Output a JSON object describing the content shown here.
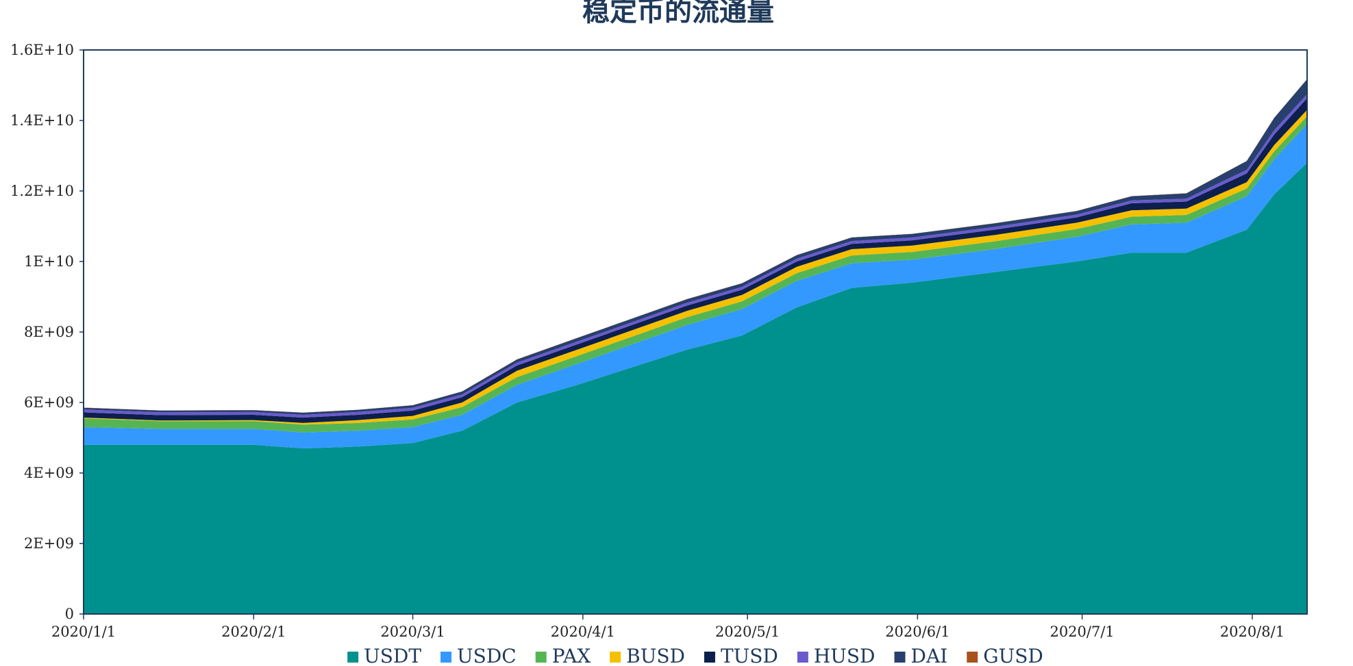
{
  "chart_data": {
    "type": "area",
    "stacked": true,
    "title": "稳定币的流通量",
    "xlabel": "",
    "ylabel": "",
    "x_start": "2020/1/1",
    "x_end": "2020/8/11",
    "xticks": [
      {
        "label": "2020/1/1",
        "date": "2020-01-01"
      },
      {
        "label": "2020/2/1",
        "date": "2020-02-01"
      },
      {
        "label": "2020/3/1",
        "date": "2020-03-01"
      },
      {
        "label": "2020/4/1",
        "date": "2020-04-01"
      },
      {
        "label": "2020/5/1",
        "date": "2020-05-01"
      },
      {
        "label": "2020/6/1",
        "date": "2020-06-01"
      },
      {
        "label": "2020/7/1",
        "date": "2020-07-01"
      },
      {
        "label": "2020/8/1",
        "date": "2020-08-01"
      }
    ],
    "ylim": [
      0,
      16000000000
    ],
    "yticks": [
      {
        "label": "0",
        "value": 0
      },
      {
        "label": "2E+09",
        "value": 2000000000
      },
      {
        "label": "4E+09",
        "value": 4000000000
      },
      {
        "label": "6E+09",
        "value": 6000000000
      },
      {
        "label": "8E+09",
        "value": 8000000000
      },
      {
        "label": "1E+10",
        "value": 10000000000
      },
      {
        "label": "1.2E+10",
        "value": 12000000000
      },
      {
        "label": "1.4E+10",
        "value": 14000000000
      },
      {
        "label": "1.6E+10",
        "value": 16000000000
      }
    ],
    "grid": false,
    "legend_position": "bottom",
    "x": [
      "2020-01-01",
      "2020-01-15",
      "2020-02-01",
      "2020-02-10",
      "2020-02-20",
      "2020-03-01",
      "2020-03-10",
      "2020-03-20",
      "2020-03-31",
      "2020-04-10",
      "2020-04-20",
      "2020-04-30",
      "2020-05-10",
      "2020-05-20",
      "2020-05-31",
      "2020-06-15",
      "2020-06-30",
      "2020-07-10",
      "2020-07-20",
      "2020-07-31",
      "2020-08-05",
      "2020-08-11"
    ],
    "series": [
      {
        "name": "USDT",
        "color": "#00918e",
        "values": [
          4800000000.0,
          4800000000.0,
          4800000000.0,
          4700000000.0,
          4750000000.0,
          4850000000.0,
          5200000000.0,
          6000000000.0,
          6500000000.0,
          7000000000.0,
          7500000000.0,
          7900000000.0,
          8700000000.0,
          9250000000.0,
          9400000000.0,
          9700000000.0,
          10000000000.0,
          10250000000.0,
          10250000000.0,
          10900000000.0,
          11900000000.0,
          12800000000.0
        ]
      },
      {
        "name": "USDC",
        "color": "#3399ff",
        "values": [
          500000000.0,
          450000000.0,
          450000000.0,
          450000000.0,
          450000000.0,
          450000000.0,
          450000000.0,
          500000000.0,
          600000000.0,
          650000000.0,
          700000000.0,
          750000000.0,
          750000000.0,
          700000000.0,
          650000000.0,
          650000000.0,
          700000000.0,
          800000000.0,
          850000000.0,
          950000000.0,
          1000000000.0,
          1100000000.0
        ]
      },
      {
        "name": "PAX",
        "color": "#55b555",
        "values": [
          250000000.0,
          220000000.0,
          220000000.0,
          220000000.0,
          220000000.0,
          220000000.0,
          220000000.0,
          220000000.0,
          220000000.0,
          220000000.0,
          220000000.0,
          220000000.0,
          220000000.0,
          220000000.0,
          220000000.0,
          220000000.0,
          220000000.0,
          220000000.0,
          220000000.0,
          220000000.0,
          220000000.0,
          220000000.0
        ]
      },
      {
        "name": "BUSD",
        "color": "#f5c000",
        "values": [
          20000000.0,
          20000000.0,
          30000000.0,
          50000000.0,
          80000000.0,
          100000000.0,
          130000000.0,
          180000000.0,
          180000000.0,
          180000000.0,
          180000000.0,
          180000000.0,
          180000000.0,
          180000000.0,
          180000000.0,
          180000000.0,
          180000000.0,
          180000000.0,
          180000000.0,
          180000000.0,
          180000000.0,
          180000000.0
        ]
      },
      {
        "name": "TUSD",
        "color": "#0c1f4d",
        "values": [
          150000000.0,
          150000000.0,
          150000000.0,
          150000000.0,
          150000000.0,
          150000000.0,
          150000000.0,
          150000000.0,
          150000000.0,
          150000000.0,
          150000000.0,
          150000000.0,
          150000000.0,
          150000000.0,
          150000000.0,
          150000000.0,
          150000000.0,
          200000000.0,
          200000000.0,
          250000000.0,
          300000000.0,
          330000000.0
        ]
      },
      {
        "name": "HUSD",
        "color": "#6a5acd",
        "values": [
          80000000.0,
          80000000.0,
          80000000.0,
          80000000.0,
          80000000.0,
          80000000.0,
          80000000.0,
          80000000.0,
          80000000.0,
          80000000.0,
          80000000.0,
          80000000.0,
          80000000.0,
          80000000.0,
          80000000.0,
          80000000.0,
          80000000.0,
          80000000.0,
          80000000.0,
          100000000.0,
          120000000.0,
          120000000.0
        ]
      },
      {
        "name": "DAI",
        "color": "#27406e",
        "values": [
          50000000.0,
          50000000.0,
          50000000.0,
          60000000.0,
          60000000.0,
          70000000.0,
          80000000.0,
          90000000.0,
          100000000.0,
          100000000.0,
          100000000.0,
          100000000.0,
          100000000.0,
          100000000.0,
          100000000.0,
          100000000.0,
          100000000.0,
          120000000.0,
          150000000.0,
          250000000.0,
          350000000.0,
          420000000.0
        ]
      },
      {
        "name": "GUSD",
        "color": "#a5521b",
        "values": [
          5000000.0,
          5000000.0,
          5000000.0,
          5000000.0,
          5000000.0,
          5000000.0,
          5000000.0,
          5000000.0,
          5000000.0,
          5000000.0,
          5000000.0,
          5000000.0,
          5000000.0,
          5000000.0,
          5000000.0,
          5000000.0,
          5000000.0,
          5000000.0,
          5000000.0,
          5000000.0,
          5000000.0,
          5000000.0
        ]
      }
    ]
  }
}
